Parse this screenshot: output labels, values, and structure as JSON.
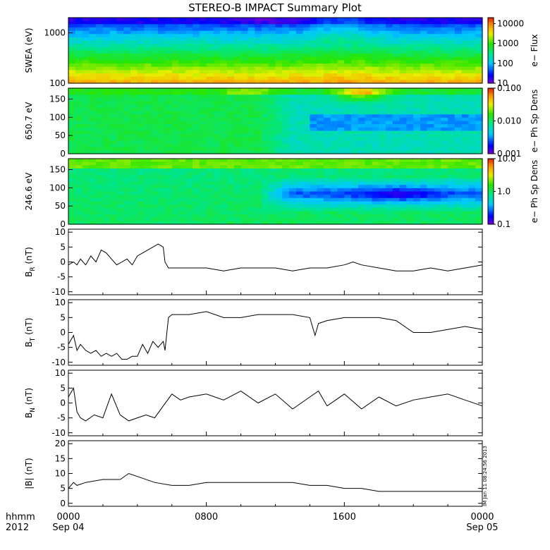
{
  "title": "STEREO-B IMPACT Summary Plot",
  "stamp": "IM Jan 11 08:24:56 2013",
  "time_axis": {
    "row1": "hhmm",
    "row2": "2012",
    "ticks": [
      {
        "hhmm": "0000",
        "date": "Sep 04",
        "hours": 0
      },
      {
        "hhmm": "0800",
        "date": "",
        "hours": 8
      },
      {
        "hhmm": "1600",
        "date": "",
        "hours": 16
      },
      {
        "hhmm": "0000",
        "date": "Sep 05",
        "hours": 24
      }
    ]
  },
  "spectrograms": [
    {
      "ylabel": "SWEA (eV)",
      "colorbar_label": "e− Flux",
      "scale": "log",
      "yrange": [
        100,
        2000
      ],
      "yticks": [
        "1000",
        "100"
      ],
      "colorbar_range": [
        10,
        20000
      ],
      "colorbar_ticks": [
        "10000",
        "1000",
        "100",
        "10"
      ]
    },
    {
      "ylabel": "650.7 eV",
      "colorbar_label": "e− Ph Sp Dens",
      "scale": "linear",
      "yrange": [
        0,
        180
      ],
      "yticks": [
        "150",
        "100",
        "50",
        "0"
      ],
      "colorbar_range": [
        0.001,
        0.1
      ],
      "colorbar_ticks": [
        "0.100",
        "0.010",
        "0.001"
      ]
    },
    {
      "ylabel": "246.6 eV",
      "colorbar_label": "e− Ph Sp Dens",
      "scale": "linear",
      "yrange": [
        0,
        180
      ],
      "yticks": [
        "150",
        "100",
        "50",
        "0"
      ],
      "colorbar_range": [
        0.1,
        10
      ],
      "colorbar_ticks": [
        "10.0",
        "1.0",
        "0.1"
      ]
    }
  ],
  "chart_data": [
    {
      "type": "line",
      "name": "B_R",
      "ylabel": "B",
      "ysub": "R",
      "yunit": "(nT)",
      "ylim": [
        -11,
        11
      ],
      "yticks": [
        "10",
        "5",
        "0",
        "-5",
        "-10"
      ],
      "xlim_hours": [
        0,
        24
      ],
      "x": [
        0,
        0.3,
        0.5,
        0.7,
        1,
        1.3,
        1.6,
        1.9,
        2.2,
        2.5,
        2.8,
        3.1,
        3.4,
        3.7,
        4,
        4.3,
        4.6,
        4.9,
        5.2,
        5.5,
        5.6,
        5.8,
        6,
        7,
        8,
        9,
        10,
        11,
        12,
        13,
        14,
        15,
        16,
        16.5,
        17,
        18,
        19,
        20,
        21,
        22,
        23,
        24
      ],
      "values": [
        -1,
        0,
        -1,
        1,
        -1,
        2,
        0,
        4,
        3,
        1,
        -1,
        0,
        1,
        -1,
        2,
        3,
        4,
        5,
        6,
        5,
        0,
        -2,
        -2,
        -2,
        -2,
        -3,
        -2,
        -2,
        -2,
        -3,
        -2,
        -2,
        -1,
        0,
        -1,
        -2,
        -3,
        -3,
        -2,
        -3,
        -2,
        -1
      ]
    },
    {
      "type": "line",
      "name": "B_T",
      "ylabel": "B",
      "ysub": "T",
      "yunit": "(nT)",
      "ylim": [
        -11,
        11
      ],
      "yticks": [
        "10",
        "5",
        "0",
        "-5",
        "-10"
      ],
      "xlim_hours": [
        0,
        24
      ],
      "x": [
        0,
        0.3,
        0.5,
        0.7,
        1,
        1.3,
        1.6,
        1.9,
        2.2,
        2.5,
        2.8,
        3.1,
        3.4,
        3.7,
        4,
        4.3,
        4.6,
        4.9,
        5.2,
        5.5,
        5.6,
        5.8,
        6,
        7,
        8,
        9,
        10,
        11,
        12,
        13,
        14,
        14.3,
        14.5,
        15,
        16,
        17,
        18,
        19,
        20,
        21,
        22,
        23,
        24
      ],
      "values": [
        -4,
        -1,
        -6,
        -4,
        -6,
        -7,
        -6,
        -8,
        -7,
        -8,
        -7,
        -9,
        -9,
        -8,
        -8,
        -4,
        -7,
        -3,
        -5,
        -3,
        -6,
        5,
        6,
        6,
        7,
        5,
        5,
        6,
        6,
        6,
        5,
        -1,
        3,
        4,
        5,
        5,
        5,
        4,
        0,
        0,
        1,
        2,
        1
      ]
    },
    {
      "type": "line",
      "name": "B_N",
      "ylabel": "B",
      "ysub": "N",
      "yunit": "(nT)",
      "ylim": [
        -11,
        11
      ],
      "yticks": [
        "10",
        "5",
        "0",
        "-5",
        "-10"
      ],
      "xlim_hours": [
        0,
        24
      ],
      "x": [
        0,
        0.3,
        0.5,
        0.7,
        1,
        1.5,
        2,
        2.5,
        3,
        3.5,
        4,
        4.5,
        5,
        5.5,
        6,
        6.5,
        7,
        8,
        9,
        10,
        11,
        12,
        13,
        14,
        14.5,
        15,
        16,
        17,
        18,
        19,
        20,
        21,
        22,
        23,
        24
      ],
      "values": [
        2,
        5,
        -3,
        -5,
        -6,
        -4,
        -5,
        3,
        -4,
        -6,
        -5,
        -4,
        -5,
        -1,
        3,
        1,
        2,
        3,
        1,
        4,
        0,
        3,
        -2,
        2,
        4,
        -1,
        3,
        -2,
        2,
        -1,
        1,
        2,
        3,
        1,
        -1
      ]
    },
    {
      "type": "line",
      "name": "|B|",
      "ylabel": "|B|",
      "ysub": "",
      "yunit": "(nT)",
      "ylim": [
        -1,
        21
      ],
      "yticks": [
        "20",
        "15",
        "10",
        "5",
        "0"
      ],
      "xlim_hours": [
        0,
        24
      ],
      "x": [
        0,
        0.3,
        0.5,
        1,
        2,
        3,
        3.5,
        4,
        5,
        6,
        7,
        8,
        9,
        10,
        11,
        12,
        13,
        14,
        15,
        16,
        17,
        18,
        19,
        20,
        21,
        22,
        23,
        24
      ],
      "values": [
        5,
        7,
        6,
        7,
        8,
        8,
        10,
        9,
        7,
        6,
        6,
        7,
        7,
        7,
        7,
        7,
        7,
        6,
        6,
        5,
        5,
        4,
        4,
        4,
        4,
        4,
        4,
        4
      ]
    }
  ]
}
